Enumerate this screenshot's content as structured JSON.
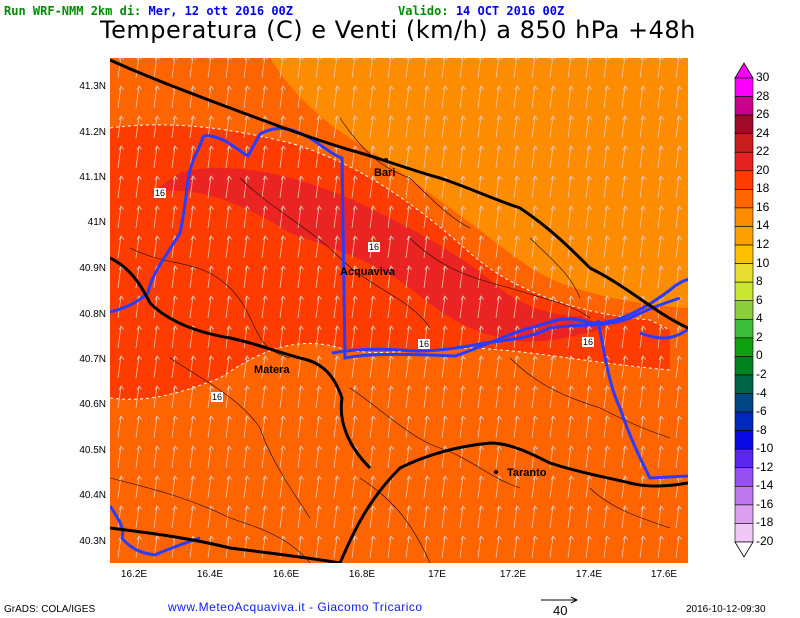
{
  "header": {
    "run_label": "Run WRF-NMM 2km di:",
    "run_date": "Mer, 12 ott 2016 00Z",
    "valid_label": "Valido:",
    "valid_date": "14 OCT 2016 00Z",
    "title": "Temperatura (C) e Venti (km/h) a 850 hPa +48h",
    "colors": {
      "run": "#008c00",
      "date": "#0000ff"
    }
  },
  "map": {
    "lat_labels": [
      "41.3N",
      "41.2N",
      "41.1N",
      "41N",
      "40.9N",
      "40.8N",
      "40.7N",
      "40.6N",
      "40.5N",
      "40.4N",
      "40.3N"
    ],
    "lon_labels": [
      "16.2E",
      "16.4E",
      "16.6E",
      "16.8E",
      "17E",
      "17.2E",
      "17.4E",
      "17.6E"
    ],
    "cities": [
      "Bari",
      "Acquaviva",
      "Matera",
      "Taranto"
    ],
    "contour_labels": [
      "16",
      "16",
      "16",
      "16",
      "16"
    ],
    "fill_colors": {
      "t12": "#fe8c00",
      "t14": "#fe6400",
      "t16": "#fe3c00",
      "t18": "#ea2323"
    }
  },
  "colorbar": {
    "labels": [
      "30",
      "28",
      "26",
      "24",
      "22",
      "20",
      "18",
      "16",
      "14",
      "12",
      "10",
      "8",
      "6",
      "4",
      "2",
      "0",
      "-2",
      "-4",
      "-6",
      "-8",
      "-10",
      "-12",
      "-14",
      "-16",
      "-18",
      "-20"
    ],
    "colors": [
      "#fa00fa",
      "#c8008c",
      "#a00a28",
      "#c81e1e",
      "#e62323",
      "#fe3c00",
      "#fe6400",
      "#fe8c00",
      "#fea000",
      "#fec000",
      "#e6dc32",
      "#c8e632",
      "#8ccf3c",
      "#3cbe3c",
      "#0fa00f",
      "#00821e",
      "#006446",
      "#004682",
      "#0028be",
      "#0a0ae6",
      "#5a28f0",
      "#9650f0",
      "#be78f0",
      "#dca0f0",
      "#f0c8f5"
    ]
  },
  "footer": {
    "grads": "GrADS: COLA/IGES",
    "credit": "www.MeteoAcquaviva.it  -  Giacomo Tricarico",
    "wind_ref": "40",
    "timestamp": "2016-10-12-09:30"
  }
}
